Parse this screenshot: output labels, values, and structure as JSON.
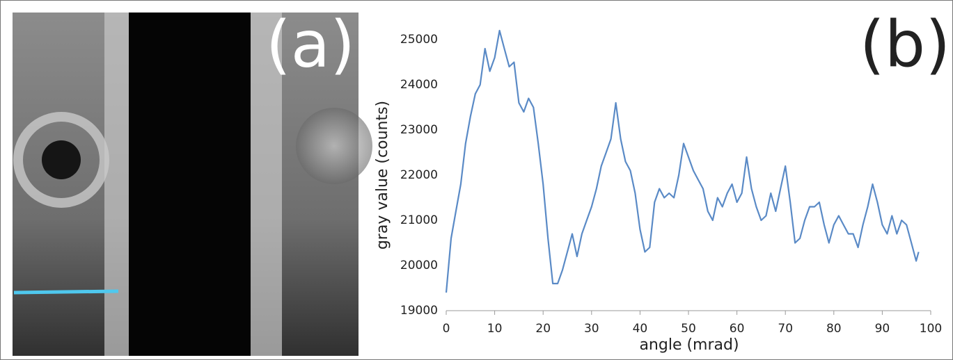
{
  "panel_labels": [
    "(a)",
    "(b)"
  ],
  "chart_data": {
    "type": "line",
    "x_label": "angle (mrad)",
    "y_label": "gray value (counts)",
    "color": "#5a8ac6",
    "x": [
      0,
      1,
      2,
      3,
      4,
      5,
      6,
      7,
      8,
      9,
      10,
      11,
      12,
      13,
      14,
      15,
      16,
      17,
      18,
      19,
      20,
      21,
      22,
      23,
      24,
      25,
      26,
      27,
      28,
      29,
      30,
      31,
      32,
      33,
      34,
      35,
      36,
      37,
      38,
      39,
      40,
      41,
      42,
      43,
      44,
      45,
      46,
      47,
      48,
      49,
      50,
      51,
      52,
      53,
      54,
      55,
      56,
      57,
      58,
      59,
      60,
      61,
      62,
      63,
      64,
      65,
      66,
      67,
      68,
      69,
      70,
      71,
      72,
      73,
      74,
      75,
      76,
      77,
      78,
      79,
      80,
      81,
      82,
      83,
      84,
      85,
      86,
      87,
      88,
      89,
      90,
      91,
      92,
      93,
      94,
      95,
      96,
      97,
      97.5
    ],
    "values": [
      19400,
      20600,
      21200,
      21800,
      22700,
      23300,
      23800,
      24000,
      24800,
      24300,
      24600,
      25200,
      24800,
      24400,
      24500,
      23600,
      23400,
      23700,
      23500,
      22700,
      21800,
      20600,
      19600,
      19600,
      19900,
      20300,
      20700,
      20200,
      20700,
      21000,
      21300,
      21700,
      22200,
      22500,
      22800,
      23600,
      22800,
      22300,
      22100,
      21600,
      20800,
      20300,
      20400,
      21400,
      21700,
      21500,
      21600,
      21500,
      22000,
      22700,
      22400,
      22100,
      21900,
      21700,
      21200,
      21000,
      21500,
      21300,
      21600,
      21800,
      21400,
      21600,
      22400,
      21700,
      21300,
      21000,
      21100,
      21600,
      21200,
      21700,
      22200,
      21400,
      20500,
      20600,
      21000,
      21300,
      21300,
      21400,
      20900,
      20500,
      20900,
      21100,
      20900,
      20700,
      20700,
      20400,
      20900,
      21300,
      21800,
      21400,
      20900,
      20700,
      21100,
      20700,
      21000,
      20900,
      20500,
      20100,
      20300
    ],
    "xlim": [
      0,
      100
    ],
    "xticks": [
      0,
      10,
      20,
      30,
      40,
      50,
      60,
      70,
      80,
      90,
      100
    ],
    "ylim": [
      19000,
      25600
    ],
    "yticks": [
      19000,
      20000,
      21000,
      22000,
      23000,
      24000,
      25000
    ]
  }
}
